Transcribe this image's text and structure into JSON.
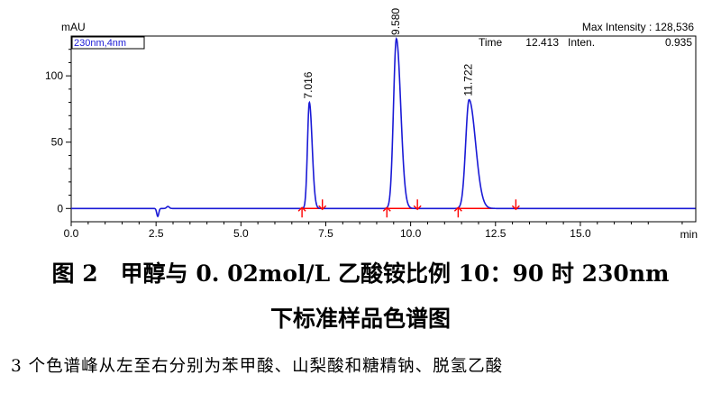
{
  "chart_data": {
    "type": "line",
    "unit_label": "mAU",
    "channel_label": "230nm,4nm",
    "x_unit_label": "min",
    "xlim": [
      0,
      18.4
    ],
    "ylim": [
      -10,
      130
    ],
    "x_ticks": [
      0,
      2.5,
      5,
      7.5,
      10,
      12.5,
      15
    ],
    "x_tick_labels": [
      "0.0",
      "2.5",
      "5.0",
      "7.5",
      "10.0",
      "12.5",
      "15.0"
    ],
    "y_ticks": [
      0,
      50,
      100
    ],
    "y_tick_labels": [
      "0",
      "50",
      "100"
    ],
    "max_intensity_text": "Max Intensity : 128,536",
    "time_label": "Time",
    "time_value": "12.413",
    "inten_label": "Inten.",
    "inten_value": "0.935",
    "line_color": "#1a1ad6",
    "baseline_color": "#ff0000",
    "marker_color": "#ff0000",
    "peaks": [
      {
        "rt": 7.016,
        "height": 80,
        "label": "7.016",
        "start": 6.8,
        "end": 7.4
      },
      {
        "rt": 9.58,
        "height": 128,
        "label": "9.580",
        "start": 9.3,
        "end": 10.2
      },
      {
        "rt": 11.722,
        "height": 82,
        "label": "11.722",
        "start": 11.4,
        "end": 13.1
      }
    ]
  },
  "caption": {
    "line1": "图 2　甲醇与 0. 02mol/L 乙酸铵比例 10：90 时 230nm",
    "line2": "下标准样品色谱图",
    "note": "3 个色谱峰从左至右分别为苯甲酸、山梨酸和糖精钠、脱氢乙酸"
  }
}
